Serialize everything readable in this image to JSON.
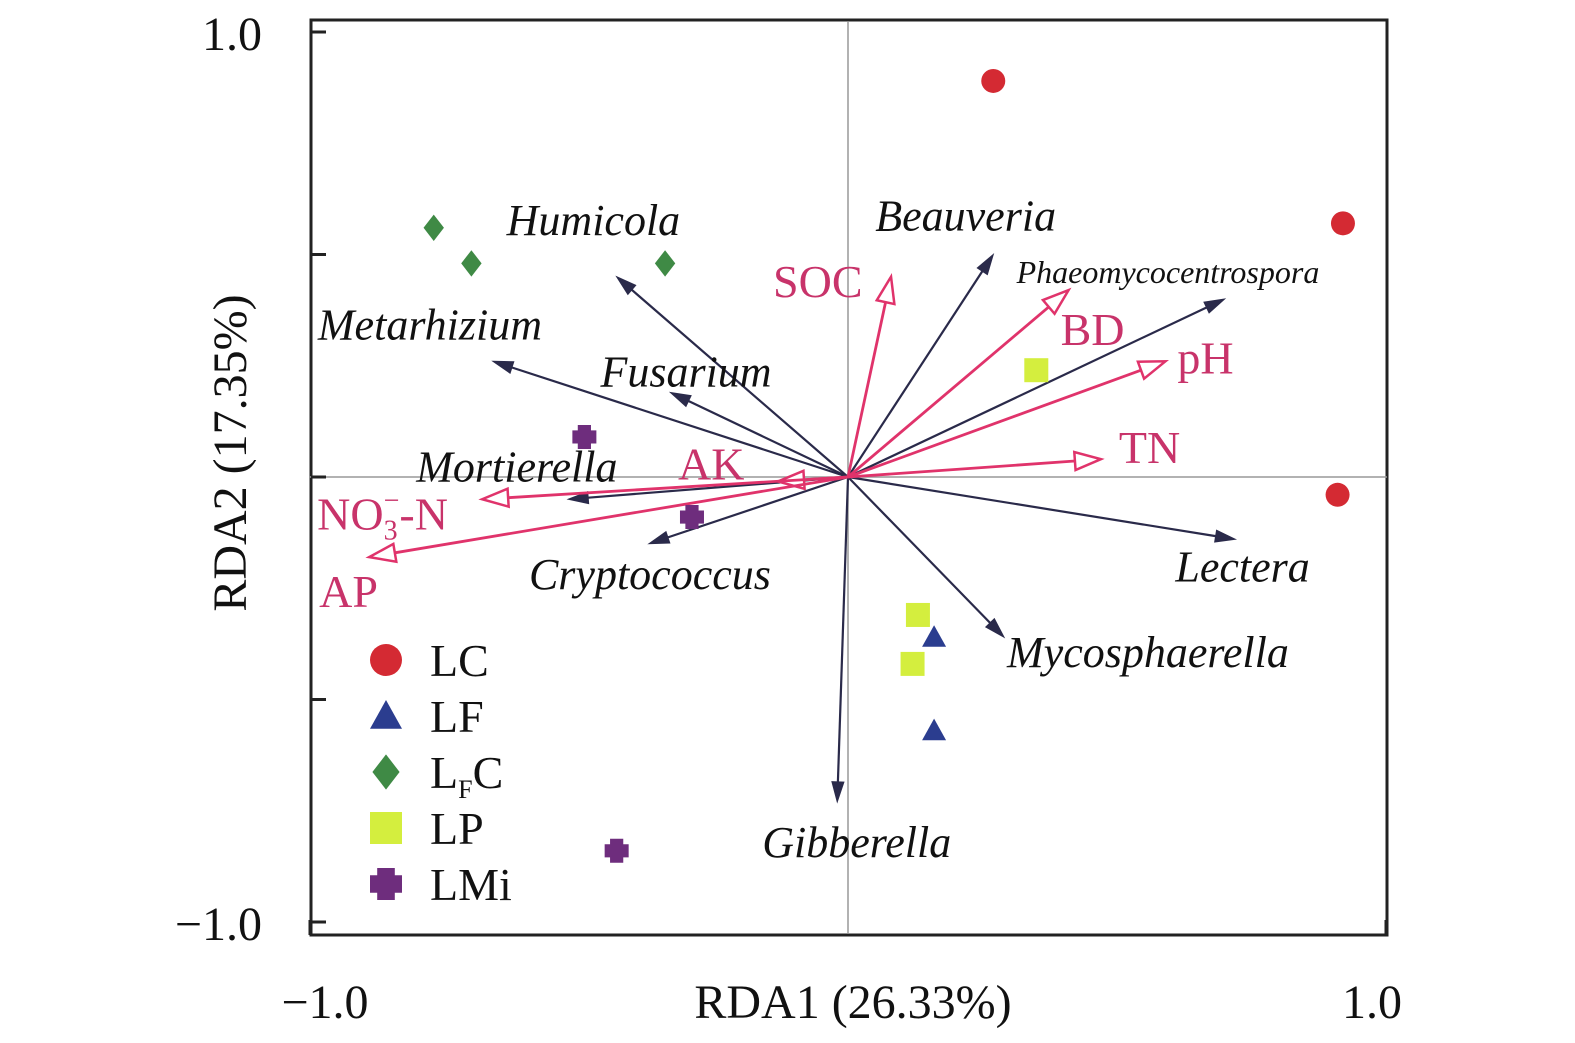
{
  "chart_data": {
    "type": "scatter",
    "subtype": "rda-biplot",
    "title": "",
    "xlabel": "RDA1 (26.33%)",
    "ylabel": "RDA2 (17.35%)",
    "xlim": [
      -1.0,
      1.0
    ],
    "ylim": [
      -1.0,
      1.0
    ],
    "x_tick_labels": [
      "−1.0",
      "1.0"
    ],
    "y_tick_labels": [
      "1.0",
      "−1.0"
    ],
    "grid": false,
    "zero_lines": true,
    "legend_position": "bottom-left",
    "env_vectors": [
      {
        "name": "SOC",
        "x": 0.08,
        "y": 0.45
      },
      {
        "name": "BD",
        "x": 0.41,
        "y": 0.42
      },
      {
        "name": "pH",
        "x": 0.59,
        "y": 0.26
      },
      {
        "name": "TN",
        "x": 0.47,
        "y": 0.04
      },
      {
        "name": "AK",
        "x": -0.13,
        "y": -0.01
      },
      {
        "name": "NO3-N",
        "label_main": "NO",
        "label_sub": "3",
        "label_sup": "−",
        "label_tail": "-N",
        "x": -0.68,
        "y": -0.05
      },
      {
        "name": "AP",
        "x": -0.89,
        "y": -0.18
      }
    ],
    "species_vectors": [
      {
        "name": "Humicola",
        "x": -0.43,
        "y": 0.45
      },
      {
        "name": "Metarhizium",
        "x": -0.66,
        "y": 0.26
      },
      {
        "name": "Fusarium",
        "x": -0.33,
        "y": 0.19
      },
      {
        "name": "Mortierella",
        "x": -0.52,
        "y": -0.05
      },
      {
        "name": "Cryptococcus",
        "x": -0.37,
        "y": -0.15
      },
      {
        "name": "Beauveria",
        "x": 0.27,
        "y": 0.5
      },
      {
        "name": "Phaeomycocentrospora",
        "x": 0.7,
        "y": 0.4
      },
      {
        "name": "Lectera",
        "x": 0.72,
        "y": -0.14
      },
      {
        "name": "Mycosphaerella",
        "x": 0.29,
        "y": -0.36
      },
      {
        "name": "Gibberella",
        "x": -0.02,
        "y": -0.73
      }
    ],
    "series": [
      {
        "name": "LC",
        "marker": "circle",
        "color": "#d42a33",
        "points": [
          [
            0.27,
            0.89
          ],
          [
            0.92,
            0.57
          ],
          [
            0.91,
            -0.04
          ]
        ]
      },
      {
        "name": "LF",
        "marker": "triangle",
        "color": "#2b3d8f",
        "points": [
          [
            0.16,
            -0.36
          ],
          [
            0.16,
            -0.57
          ]
        ]
      },
      {
        "name": "LFC",
        "label_main": "L",
        "label_sub": "F",
        "label_tail": "C",
        "marker": "diamond",
        "color": "#3f8a45",
        "points": [
          [
            -0.77,
            0.56
          ],
          [
            -0.7,
            0.48
          ],
          [
            -0.34,
            0.48
          ]
        ]
      },
      {
        "name": "LP",
        "marker": "square",
        "color": "#d4ee3e",
        "points": [
          [
            0.35,
            0.24
          ],
          [
            0.13,
            -0.31
          ],
          [
            0.12,
            -0.42
          ]
        ]
      },
      {
        "name": "LMi",
        "marker": "cross",
        "color": "#6e2d7d",
        "points": [
          [
            -0.49,
            0.09
          ],
          [
            -0.29,
            -0.09
          ],
          [
            -0.43,
            -0.84
          ]
        ]
      }
    ],
    "colors": {
      "env_arrow": "#e0336b",
      "env_label": "#c8336a",
      "species_arrow": "#2a2a4a",
      "axis": "#222222",
      "zero_line": "#999999"
    }
  }
}
